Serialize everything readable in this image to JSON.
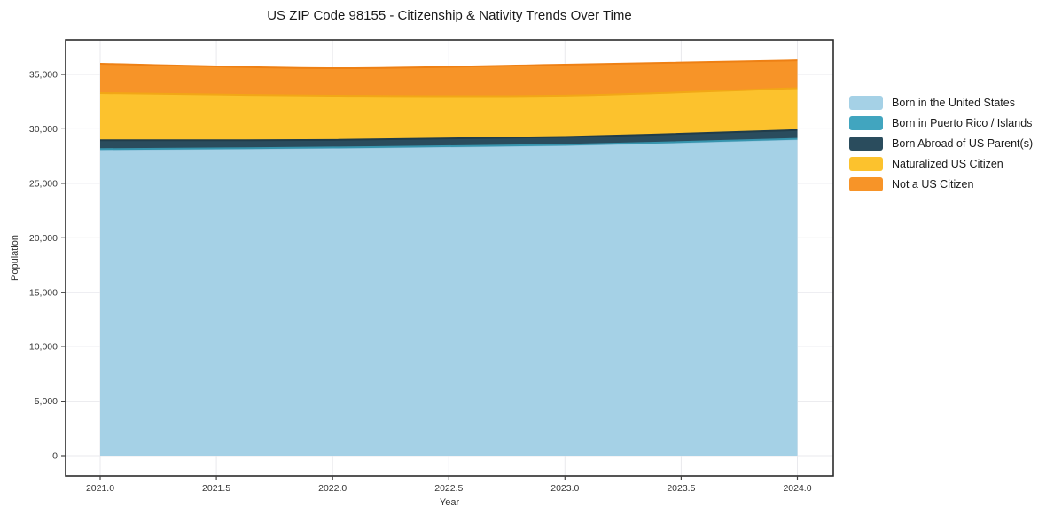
{
  "chart": {
    "title": "US ZIP Code 98155 - Citizenship & Nativity Trends Over Time",
    "xlabel": "Year",
    "ylabel": "Population",
    "colors": {
      "grid": "#e9e9ed",
      "axis_border": "#2b2b2b",
      "tick": "#444444",
      "tick_label": "#363636",
      "title_text": "#1a1a1a"
    }
  },
  "chart_data": {
    "type": "area",
    "stacked": true,
    "title": "US ZIP Code 98155 - Citizenship & Nativity Trends Over Time",
    "xlabel": "Year",
    "ylabel": "Population",
    "x": [
      2021,
      2022,
      2023,
      2024
    ],
    "series": [
      {
        "name": "Born in the United States",
        "color": "#a5d1e6",
        "edge": "#8cc0da",
        "values": [
          28100,
          28250,
          28500,
          29050
        ]
      },
      {
        "name": "Born in Puerto Rico / Islands",
        "color": "#41a5bf",
        "edge": "#3795ae",
        "values": [
          40,
          40,
          40,
          40
        ]
      },
      {
        "name": "Born Abroad of US Parent(s)",
        "color": "#2a4c5d",
        "edge": "#203c4a",
        "values": [
          820,
          700,
          720,
          800
        ]
      },
      {
        "name": "Naturalized US Citizen",
        "color": "#fcc22d",
        "edge": "#f2a716",
        "values": [
          4330,
          4060,
          3800,
          3850
        ]
      },
      {
        "name": "Not a US Citizen",
        "color": "#f79428",
        "edge": "#ee8014",
        "values": [
          2690,
          2520,
          2840,
          2550
        ]
      }
    ],
    "totals": [
      35980,
      35570,
      35900,
      36290
    ],
    "xticks": [
      "2021.0",
      "2021.5",
      "2022.0",
      "2022.5",
      "2023.0",
      "2023.5",
      "2024.0"
    ],
    "xtick_values": [
      2021,
      2021.5,
      2022,
      2022.5,
      2023,
      2023.5,
      2024
    ],
    "yticks": [
      "0",
      "5,000",
      "10,000",
      "15,000",
      "20,000",
      "25,000",
      "30,000",
      "35,000"
    ],
    "ytick_values": [
      0,
      5000,
      10000,
      15000,
      20000,
      25000,
      30000,
      35000
    ],
    "xlim": [
      2021,
      2024
    ],
    "ylim": [
      0,
      35000
    ],
    "grid": true,
    "legend_position": "right"
  }
}
